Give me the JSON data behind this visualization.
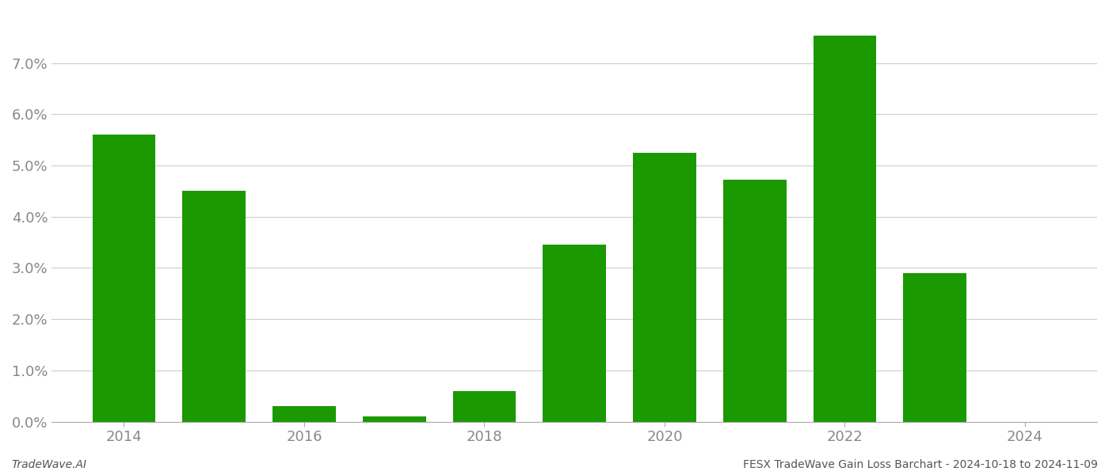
{
  "years": [
    2014,
    2015,
    2016,
    2017,
    2018,
    2019,
    2020,
    2021,
    2022,
    2023
  ],
  "values": [
    0.056,
    0.045,
    0.003,
    0.001,
    0.006,
    0.0345,
    0.0525,
    0.0473,
    0.0753,
    0.029
  ],
  "bar_color": "#1a9900",
  "background_color": "#ffffff",
  "grid_color": "#cccccc",
  "ylim_min": 0.0,
  "ylim_max": 0.08,
  "ytick_max": 0.07,
  "ytick_step": 0.01,
  "xlim_min": 2013.2,
  "xlim_max": 2024.8,
  "xtick_years": [
    2014,
    2016,
    2018,
    2020,
    2022,
    2024
  ],
  "footer_left": "TradeWave.AI",
  "footer_right": "FESX TradeWave Gain Loss Barchart - 2024-10-18 to 2024-11-09",
  "bar_width": 0.7,
  "axis_color": "#aaaaaa",
  "tick_color": "#888888",
  "font_color": "#555555",
  "tick_fontsize": 13,
  "footer_fontsize": 10
}
